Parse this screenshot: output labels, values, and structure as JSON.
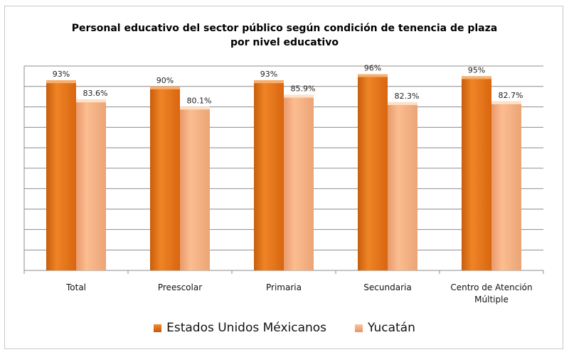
{
  "chart_data": {
    "type": "bar",
    "title": "Personal educativo del sector público según condición de tenencia de plaza por nivel educativo",
    "title_lines": [
      "Personal educativo del sector público según condición de tenencia de plaza",
      "por nivel educativo"
    ],
    "categories": [
      [
        "Total"
      ],
      [
        "Preescolar"
      ],
      [
        "Primaria"
      ],
      [
        "Secundaria"
      ],
      [
        "Centro de Atención",
        "Múltiple"
      ]
    ],
    "series": [
      {
        "name": "Estados Unidos Méxicanos",
        "values": [
          93,
          90,
          93,
          96,
          95
        ],
        "labels": [
          "93%",
          "90%",
          "93%",
          "96%",
          "95%"
        ],
        "color": "#e8761c"
      },
      {
        "name": "Yucatán",
        "values": [
          83.6,
          80.1,
          85.9,
          82.3,
          82.7
        ],
        "labels": [
          "83.6%",
          "80.1%",
          "85.9%",
          "82.3%",
          "82.7%"
        ],
        "color": "#f6b283"
      }
    ],
    "ylim": [
      0,
      100
    ],
    "ytick_step": 10,
    "grid": true,
    "legend": "bottom",
    "xlabel": "",
    "ylabel": ""
  }
}
